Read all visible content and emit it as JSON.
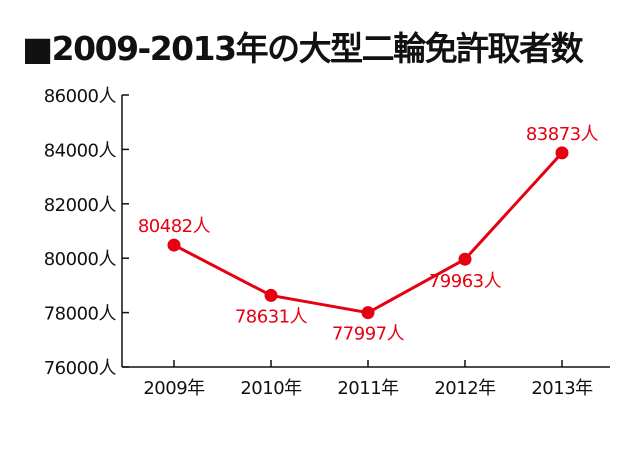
{
  "chart_data": {
    "type": "line",
    "title": "■2009-2013年の大型二輪免許取者数",
    "categories": [
      "2009年",
      "2010年",
      "2011年",
      "2012年",
      "2013年"
    ],
    "series": [
      {
        "values": [
          80482,
          78631,
          77997,
          79963,
          83873
        ]
      }
    ],
    "data_labels": [
      "80482人",
      "78631人",
      "77997人",
      "79963人",
      "83873人"
    ],
    "ylim": [
      76000,
      86000
    ],
    "yticks": [
      76000,
      78000,
      80000,
      82000,
      84000,
      86000
    ],
    "ytick_labels": [
      "76000人",
      "78000人",
      "80000人",
      "82000人",
      "84000人",
      "86000人"
    ],
    "grid": false,
    "line_color": "#e60012",
    "axis_color": "#111111"
  }
}
